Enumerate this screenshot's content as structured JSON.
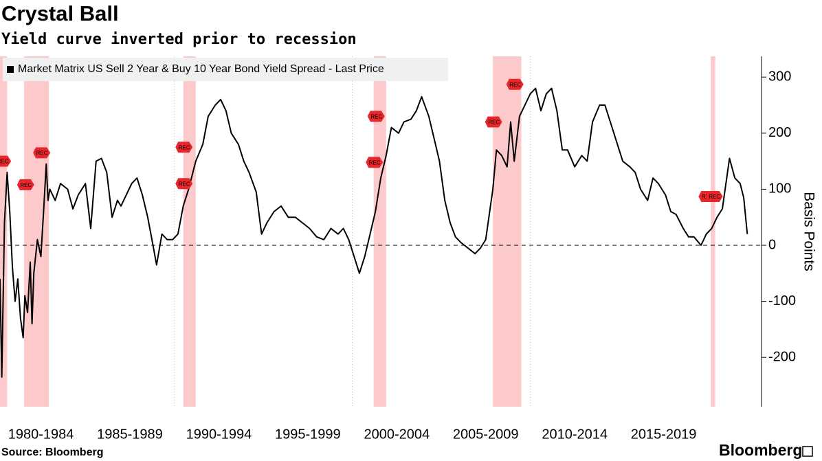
{
  "chart_data": {
    "type": "line",
    "title": "Crystal Ball",
    "subtitle": "Yield curve inverted prior to recession",
    "source": "Source: Bloomberg",
    "logo": "Bloomberg",
    "y_label": "Basis Points",
    "x": [
      1980.2,
      1980.3,
      1980.45,
      1980.6,
      1980.75,
      1980.9,
      1981.05,
      1981.2,
      1981.35,
      1981.5,
      1981.6,
      1981.75,
      1981.9,
      1982.0,
      1982.1,
      1982.3,
      1982.5,
      1982.65,
      1982.8,
      1982.9,
      1983.0,
      1983.3,
      1983.6,
      1984.0,
      1984.3,
      1984.6,
      1985.0,
      1985.3,
      1985.6,
      1985.9,
      1986.2,
      1986.5,
      1986.8,
      1987.0,
      1987.3,
      1987.6,
      1987.9,
      1988.2,
      1988.5,
      1988.8,
      1989.0,
      1989.3,
      1989.6,
      1989.9,
      1990.2,
      1990.5,
      1990.8,
      1991.2,
      1991.6,
      1991.9,
      1992.3,
      1992.6,
      1992.9,
      1993.2,
      1993.6,
      1993.9,
      1994.2,
      1994.6,
      1994.9,
      1995.2,
      1995.6,
      1996.0,
      1996.4,
      1996.8,
      1997.2,
      1997.6,
      1998.0,
      1998.4,
      1998.8,
      1999.2,
      1999.5,
      1999.8,
      2000.1,
      2000.4,
      2000.7,
      2001.0,
      2001.3,
      2001.6,
      2001.9,
      2002.2,
      2002.6,
      2002.9,
      2003.3,
      2003.6,
      2003.9,
      2004.3,
      2004.6,
      2004.9,
      2005.2,
      2005.5,
      2005.8,
      2006.1,
      2006.5,
      2006.9,
      2007.2,
      2007.5,
      2007.9,
      2008.1,
      2008.4,
      2008.7,
      2008.9,
      2009.1,
      2009.4,
      2009.7,
      2010.0,
      2010.3,
      2010.6,
      2010.9,
      2011.2,
      2011.5,
      2011.8,
      2012.1,
      2012.5,
      2012.9,
      2013.2,
      2013.5,
      2013.9,
      2014.2,
      2014.5,
      2014.9,
      2015.2,
      2015.6,
      2015.9,
      2016.2,
      2016.6,
      2016.9,
      2017.2,
      2017.6,
      2017.9,
      2018.2,
      2018.6,
      2018.9,
      2019.2,
      2019.6,
      2019.9,
      2020.2,
      2020.5,
      2020.8,
      2021.2,
      2021.5,
      2021.8,
      2022.0,
      2022.2
    ],
    "series": [
      {
        "name": "Market Matrix US Sell 2 Year & Buy 10 Year Bond Yield Spread - Last Price",
        "color": "#000000",
        "values": [
          -60,
          -235,
          40,
          130,
          60,
          -40,
          -100,
          -60,
          -130,
          -165,
          -90,
          -120,
          -30,
          -140,
          -50,
          10,
          -20,
          60,
          145,
          80,
          100,
          80,
          110,
          100,
          65,
          90,
          110,
          30,
          150,
          155,
          130,
          50,
          80,
          70,
          90,
          110,
          120,
          90,
          50,
          0,
          -35,
          20,
          10,
          10,
          20,
          70,
          100,
          150,
          180,
          230,
          250,
          260,
          240,
          200,
          180,
          150,
          130,
          95,
          20,
          40,
          60,
          70,
          50,
          50,
          40,
          30,
          15,
          10,
          30,
          20,
          30,
          10,
          -20,
          -50,
          -20,
          20,
          60,
          120,
          160,
          210,
          200,
          220,
          225,
          240,
          265,
          230,
          190,
          150,
          80,
          40,
          15,
          5,
          -5,
          -15,
          -5,
          10,
          100,
          170,
          160,
          140,
          220,
          150,
          230,
          250,
          270,
          280,
          240,
          270,
          280,
          240,
          170,
          170,
          140,
          160,
          150,
          220,
          250,
          250,
          220,
          180,
          150,
          140,
          130,
          100,
          80,
          120,
          110,
          90,
          60,
          55,
          30,
          15,
          15,
          0,
          20,
          30,
          50,
          65,
          155,
          120,
          110,
          85,
          20
        ]
      }
    ],
    "recessions": [
      [
        1980.0,
        1980.6
      ],
      [
        1981.55,
        1982.95
      ],
      [
        1990.5,
        1991.2
      ],
      [
        2001.2,
        2001.9
      ],
      [
        2007.9,
        2009.5
      ],
      [
        2020.15,
        2020.4
      ]
    ],
    "recession_color": "#fcc4c4",
    "annotations": [
      {
        "x": 1980.4,
        "y": 150,
        "label": "REC"
      },
      {
        "x": 1981.7,
        "y": 108,
        "label": "REC"
      },
      {
        "x": 1982.6,
        "y": 165,
        "label": "REC"
      },
      {
        "x": 1990.6,
        "y": 175,
        "label": "REC"
      },
      {
        "x": 1990.6,
        "y": 110,
        "label": "REC"
      },
      {
        "x": 2001.4,
        "y": 230,
        "label": "REC"
      },
      {
        "x": 2001.3,
        "y": 148,
        "label": "REC"
      },
      {
        "x": 2008.0,
        "y": 220,
        "label": "REC"
      },
      {
        "x": 2009.2,
        "y": 287,
        "label": "REC"
      },
      {
        "x": 2020.0,
        "y": 87,
        "label": "REC"
      },
      {
        "x": 2020.4,
        "y": 87,
        "label": "REC"
      }
    ],
    "xlim": [
      1980.2,
      2023.0
    ],
    "xticks": [
      {
        "value": 1982.5,
        "label": "1980-1984"
      },
      {
        "value": 1987.5,
        "label": "1985-1989"
      },
      {
        "value": 1992.5,
        "label": "1990-1994"
      },
      {
        "value": 1997.5,
        "label": "1995-1999"
      },
      {
        "value": 2002.5,
        "label": "2000-2004"
      },
      {
        "value": 2007.5,
        "label": "2005-2009"
      },
      {
        "value": 2012.5,
        "label": "2010-2014"
      },
      {
        "value": 2017.5,
        "label": "2015-2019"
      }
    ],
    "xgrid": [
      1990,
      2000,
      2010
    ],
    "ylim": [
      -288,
      337
    ],
    "yticks": [
      -200,
      -100,
      0,
      100,
      200,
      300
    ],
    "zero_line": 0
  }
}
